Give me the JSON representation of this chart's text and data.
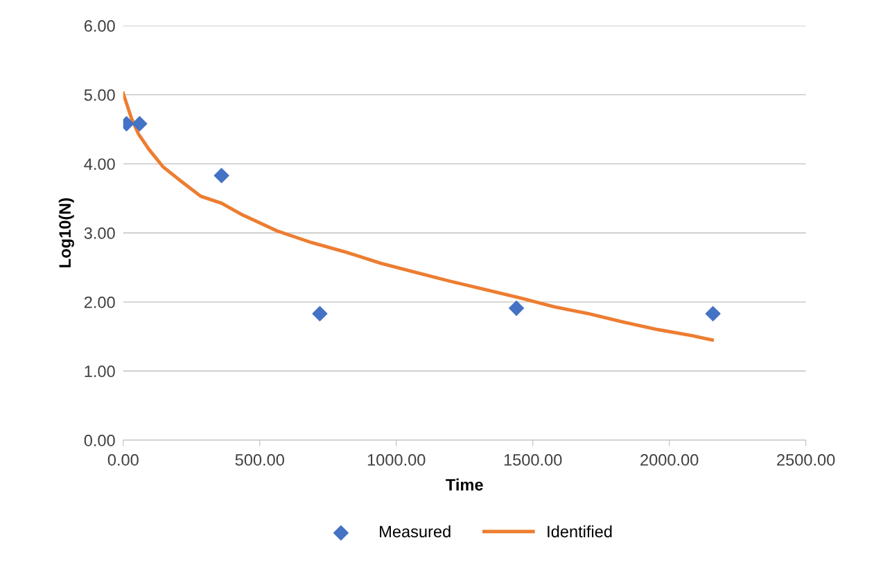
{
  "chart_data": {
    "type": "scatter",
    "xlabel": "Time",
    "ylabel": "Log10(N)",
    "xlim": [
      0,
      2500
    ],
    "ylim": [
      0,
      6
    ],
    "xticks": [
      {
        "value": 0,
        "label": "0.00"
      },
      {
        "value": 500,
        "label": "500.00"
      },
      {
        "value": 1000,
        "label": "1000.00"
      },
      {
        "value": 1500,
        "label": "1500.00"
      },
      {
        "value": 2000,
        "label": "2000.00"
      },
      {
        "value": 2500,
        "label": "2500.00"
      }
    ],
    "yticks": [
      {
        "value": 0,
        "label": "0.00"
      },
      {
        "value": 1,
        "label": "1.00"
      },
      {
        "value": 2,
        "label": "2.00"
      },
      {
        "value": 3,
        "label": "3.00"
      },
      {
        "value": 4,
        "label": "4.00"
      },
      {
        "value": 5,
        "label": "5.00"
      },
      {
        "value": 6,
        "label": "6.00"
      }
    ],
    "grid": "y",
    "legend": "bottom",
    "series": [
      {
        "name": "Measured",
        "marker": "diamond",
        "color": "#4472c4",
        "x": [
          12,
          60,
          360,
          720,
          1440,
          2160
        ],
        "values": [
          4.58,
          4.58,
          3.83,
          1.83,
          1.91,
          1.83
        ]
      },
      {
        "name": "Identified",
        "type": "line",
        "marker": "none",
        "color": "#ed7d31",
        "x": [
          0,
          30,
          56,
          94,
          145,
          208,
          284,
          360,
          437,
          563,
          690,
          817,
          944,
          1071,
          1198,
          1325,
          1452,
          1579,
          1706,
          1832,
          1959,
          2086,
          2157
        ],
        "values": [
          5.02,
          4.66,
          4.43,
          4.21,
          3.96,
          3.76,
          3.53,
          3.43,
          3.26,
          3.03,
          2.86,
          2.72,
          2.56,
          2.43,
          2.3,
          2.18,
          2.06,
          1.93,
          1.83,
          1.71,
          1.6,
          1.51,
          1.45
        ]
      }
    ]
  }
}
